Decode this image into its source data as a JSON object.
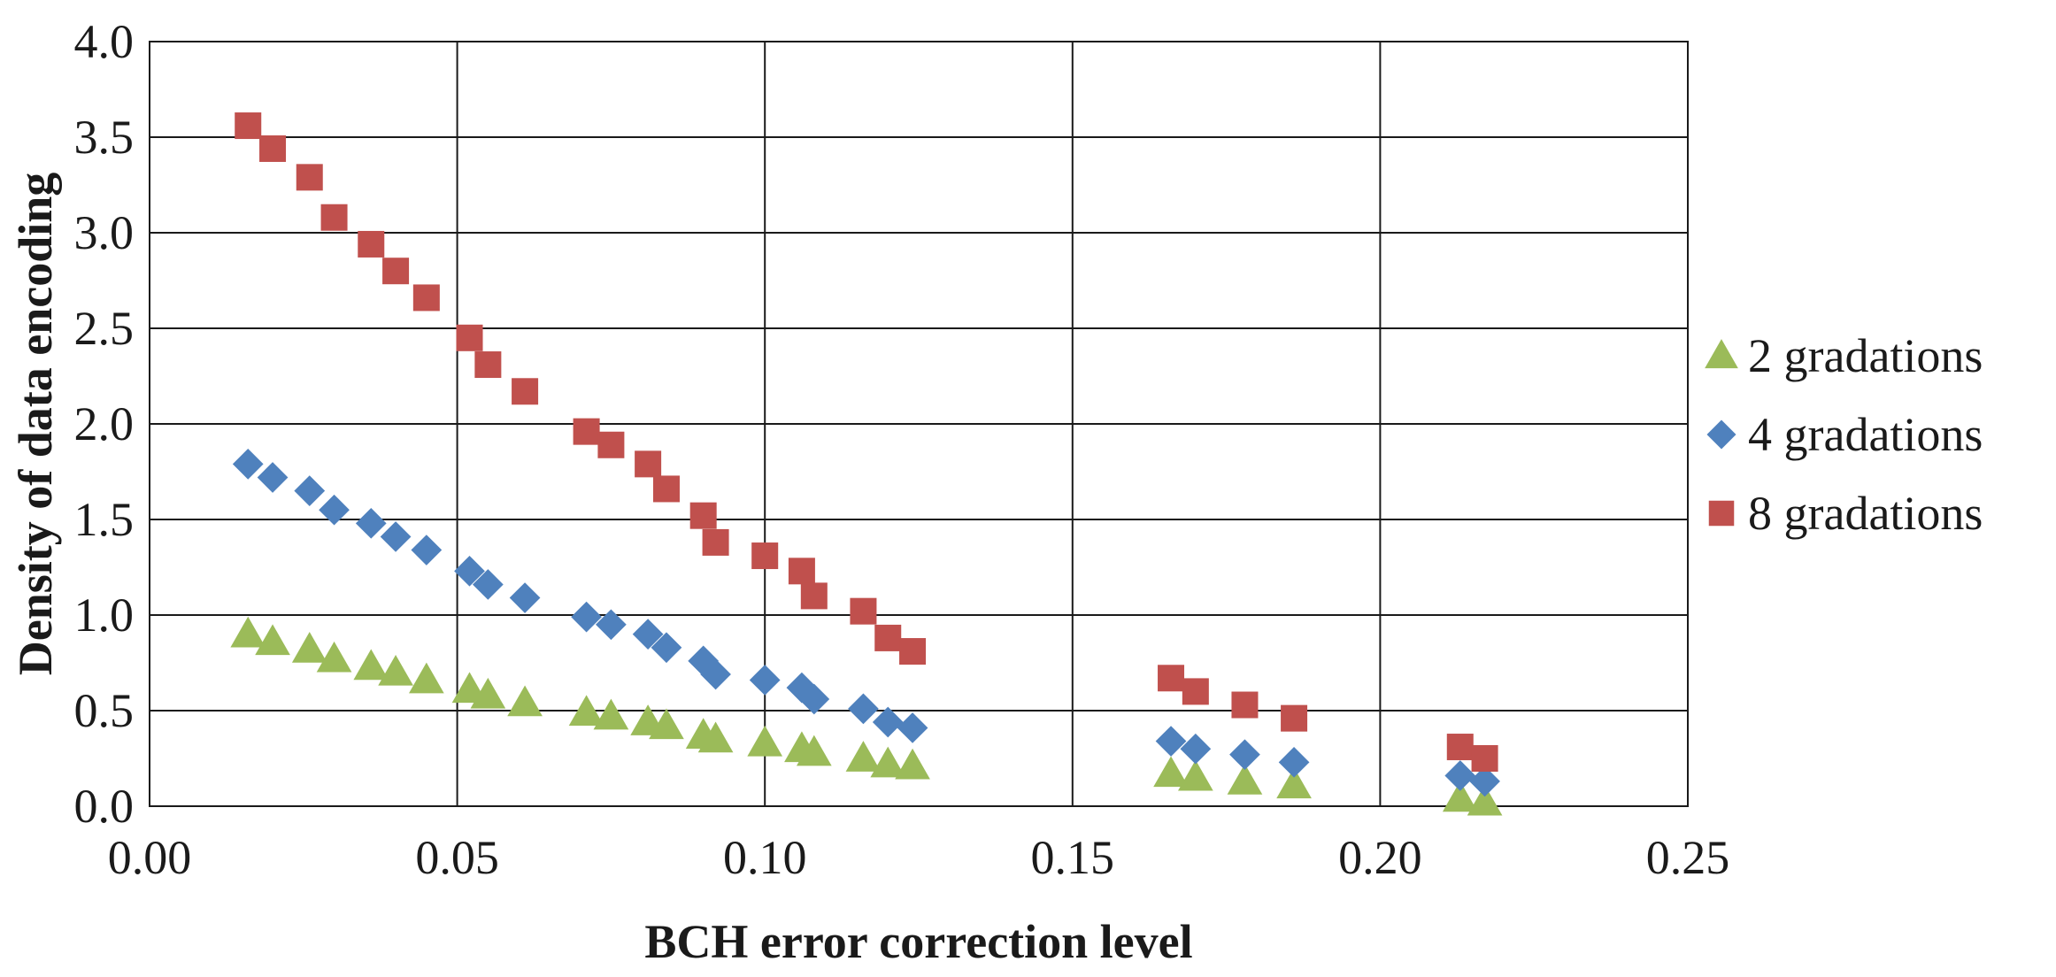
{
  "chart_data": {
    "type": "scatter",
    "xlabel": "BCH error correction level",
    "ylabel": "Density of data encoding",
    "xlim": [
      0.0,
      0.25
    ],
    "ylim": [
      0.0,
      4.0
    ],
    "xticks": [
      "0.00",
      "0.05",
      "0.10",
      "0.15",
      "0.20",
      "0.25"
    ],
    "yticks": [
      "0.0",
      "0.5",
      "1.0",
      "1.5",
      "2.0",
      "2.5",
      "3.0",
      "3.5",
      "4.0"
    ],
    "grid": true,
    "legend_position": "right",
    "series": [
      {
        "name": "2 gradations",
        "marker": "triangle",
        "color": "#9BBB59",
        "points": [
          [
            0.016,
            0.9
          ],
          [
            0.02,
            0.86
          ],
          [
            0.026,
            0.82
          ],
          [
            0.03,
            0.77
          ],
          [
            0.036,
            0.73
          ],
          [
            0.04,
            0.7
          ],
          [
            0.045,
            0.66
          ],
          [
            0.052,
            0.61
          ],
          [
            0.055,
            0.58
          ],
          [
            0.061,
            0.54
          ],
          [
            0.071,
            0.49
          ],
          [
            0.075,
            0.47
          ],
          [
            0.081,
            0.44
          ],
          [
            0.084,
            0.42
          ],
          [
            0.09,
            0.37
          ],
          [
            0.092,
            0.35
          ],
          [
            0.1,
            0.33
          ],
          [
            0.106,
            0.3
          ],
          [
            0.108,
            0.28
          ],
          [
            0.116,
            0.25
          ],
          [
            0.12,
            0.22
          ],
          [
            0.124,
            0.21
          ],
          [
            0.166,
            0.17
          ],
          [
            0.17,
            0.15
          ],
          [
            0.178,
            0.13
          ],
          [
            0.186,
            0.11
          ],
          [
            0.213,
            0.04
          ],
          [
            0.217,
            0.02
          ]
        ]
      },
      {
        "name": "4 gradations",
        "marker": "diamond",
        "color": "#4F81BD",
        "points": [
          [
            0.016,
            1.79
          ],
          [
            0.02,
            1.72
          ],
          [
            0.026,
            1.65
          ],
          [
            0.03,
            1.55
          ],
          [
            0.036,
            1.48
          ],
          [
            0.04,
            1.41
          ],
          [
            0.045,
            1.34
          ],
          [
            0.052,
            1.23
          ],
          [
            0.055,
            1.16
          ],
          [
            0.061,
            1.09
          ],
          [
            0.071,
            0.99
          ],
          [
            0.075,
            0.95
          ],
          [
            0.081,
            0.9
          ],
          [
            0.084,
            0.83
          ],
          [
            0.09,
            0.76
          ],
          [
            0.092,
            0.69
          ],
          [
            0.1,
            0.66
          ],
          [
            0.106,
            0.62
          ],
          [
            0.108,
            0.56
          ],
          [
            0.116,
            0.51
          ],
          [
            0.12,
            0.44
          ],
          [
            0.124,
            0.41
          ],
          [
            0.166,
            0.34
          ],
          [
            0.17,
            0.3
          ],
          [
            0.178,
            0.27
          ],
          [
            0.186,
            0.23
          ],
          [
            0.213,
            0.16
          ],
          [
            0.217,
            0.13
          ]
        ]
      },
      {
        "name": "8 gradations",
        "marker": "square",
        "color": "#C0504D",
        "points": [
          [
            0.016,
            3.56
          ],
          [
            0.02,
            3.44
          ],
          [
            0.026,
            3.29
          ],
          [
            0.03,
            3.08
          ],
          [
            0.036,
            2.94
          ],
          [
            0.04,
            2.8
          ],
          [
            0.045,
            2.66
          ],
          [
            0.052,
            2.45
          ],
          [
            0.055,
            2.31
          ],
          [
            0.061,
            2.17
          ],
          [
            0.071,
            1.96
          ],
          [
            0.075,
            1.89
          ],
          [
            0.081,
            1.79
          ],
          [
            0.084,
            1.66
          ],
          [
            0.09,
            1.52
          ],
          [
            0.092,
            1.38
          ],
          [
            0.1,
            1.31
          ],
          [
            0.106,
            1.23
          ],
          [
            0.108,
            1.1
          ],
          [
            0.116,
            1.02
          ],
          [
            0.12,
            0.88
          ],
          [
            0.124,
            0.81
          ],
          [
            0.166,
            0.67
          ],
          [
            0.17,
            0.6
          ],
          [
            0.178,
            0.53
          ],
          [
            0.186,
            0.46
          ],
          [
            0.213,
            0.31
          ],
          [
            0.217,
            0.25
          ]
        ]
      }
    ]
  }
}
